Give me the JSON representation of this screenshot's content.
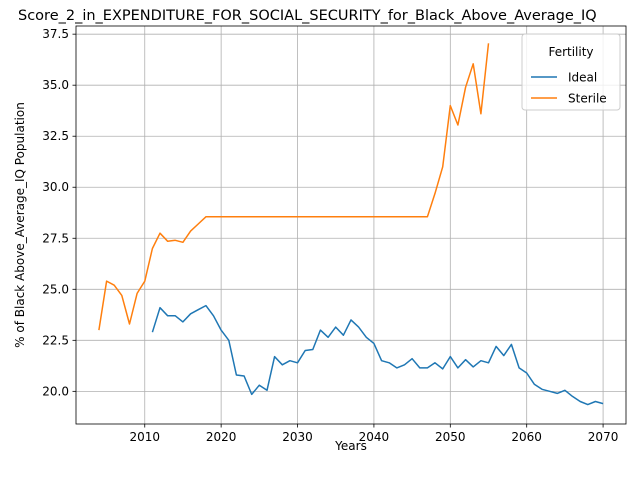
{
  "chart_data": {
    "type": "line",
    "title": "Score_2_in_EXPENDITURE_FOR_SOCIAL_SECURITY_for_Black_Above_Average_IQ",
    "xlabel": "Years",
    "ylabel": "% of Black Above_Average_IQ Population",
    "xlim": [
      2001,
      2073
    ],
    "ylim": [
      18.4,
      37.9
    ],
    "x_ticks": [
      2010,
      2020,
      2030,
      2040,
      2050,
      2060,
      2070
    ],
    "x_tick_labels": [
      "2010",
      "2020",
      "2030",
      "2040",
      "2050",
      "2060",
      "2070"
    ],
    "y_ticks": [
      20.0,
      22.5,
      25.0,
      27.5,
      30.0,
      32.5,
      35.0,
      37.5
    ],
    "y_tick_labels": [
      "20.0",
      "22.5",
      "25.0",
      "27.5",
      "30.0",
      "32.5",
      "35.0",
      "37.5"
    ],
    "grid": true,
    "legend": {
      "title": "Fertility",
      "placement": "top-right"
    },
    "series": [
      {
        "name": "Ideal",
        "color": "#1f77b4",
        "x": [
          2011,
          2012,
          2013,
          2014,
          2015,
          2016,
          2017,
          2018,
          2019,
          2020,
          2021,
          2022,
          2023,
          2024,
          2025,
          2026,
          2027,
          2028,
          2029,
          2030,
          2031,
          2032,
          2033,
          2034,
          2035,
          2036,
          2037,
          2038,
          2039,
          2040,
          2041,
          2042,
          2043,
          2044,
          2045,
          2046,
          2047,
          2048,
          2049,
          2050,
          2051,
          2052,
          2053,
          2054,
          2055,
          2056,
          2057,
          2058,
          2059,
          2060,
          2061,
          2062,
          2063,
          2064,
          2065,
          2066,
          2067,
          2068,
          2069,
          2070
        ],
        "values": [
          22.9,
          24.1,
          23.7,
          23.7,
          23.4,
          23.8,
          24.0,
          24.2,
          23.7,
          23.0,
          22.5,
          20.8,
          20.75,
          19.85,
          20.3,
          20.05,
          21.7,
          21.3,
          21.5,
          21.4,
          22.0,
          22.05,
          23.0,
          22.65,
          23.15,
          22.75,
          23.5,
          23.15,
          22.65,
          22.35,
          21.5,
          21.4,
          21.15,
          21.3,
          21.6,
          21.15,
          21.15,
          21.4,
          21.1,
          21.7,
          21.15,
          21.55,
          21.2,
          21.5,
          21.4,
          22.2,
          21.75,
          22.3,
          21.15,
          20.9,
          20.35,
          20.1,
          20.0,
          19.9,
          20.05,
          19.75,
          19.5,
          19.35,
          19.5,
          19.4
        ]
      },
      {
        "name": "Sterile",
        "color": "#ff7f0e",
        "x": [
          2004,
          2005,
          2006,
          2007,
          2008,
          2009,
          2010,
          2011,
          2012,
          2013,
          2014,
          2015,
          2016,
          2017,
          2018,
          2019,
          2020,
          2021,
          2022,
          2023,
          2024,
          2025,
          2026,
          2027,
          2028,
          2029,
          2030,
          2031,
          2032,
          2033,
          2034,
          2035,
          2036,
          2037,
          2038,
          2039,
          2040,
          2041,
          2042,
          2043,
          2044,
          2045,
          2046,
          2047,
          2048,
          2049,
          2050,
          2051,
          2052,
          2053,
          2054,
          2055
        ],
        "values": [
          23.0,
          25.4,
          25.2,
          24.7,
          23.3,
          24.8,
          25.4,
          27.0,
          27.75,
          27.35,
          27.4,
          27.3,
          27.85,
          28.2,
          28.55,
          28.55,
          28.55,
          28.55,
          28.55,
          28.55,
          28.55,
          28.55,
          28.55,
          28.55,
          28.55,
          28.55,
          28.55,
          28.55,
          28.55,
          28.55,
          28.55,
          28.55,
          28.55,
          28.55,
          28.55,
          28.55,
          28.55,
          28.55,
          28.55,
          28.55,
          28.55,
          28.55,
          28.55,
          28.55,
          29.7,
          31.0,
          34.0,
          33.05,
          34.9,
          36.05,
          33.6,
          37.05
        ]
      }
    ]
  }
}
